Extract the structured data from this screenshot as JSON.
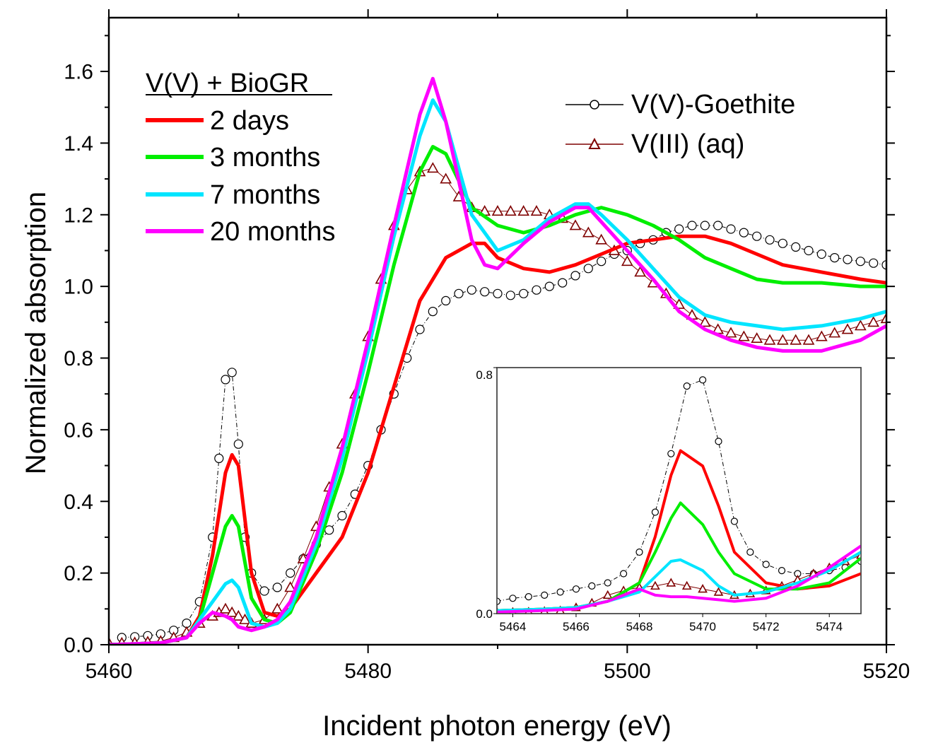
{
  "chart_data": [
    {
      "type": "line",
      "name": "main",
      "xlabel": "Incident photon energy (eV)",
      "ylabel": "Normalized absorption",
      "xlim": [
        5460,
        5520
      ],
      "ylim": [
        0.0,
        1.75
      ],
      "xticks": [
        5460,
        5480,
        5500,
        5520
      ],
      "xtick_labels": [
        "5460",
        "5480",
        "5500",
        "5520"
      ],
      "yticks": [
        0.0,
        0.2,
        0.4,
        0.6,
        0.8,
        1.0,
        1.2,
        1.4,
        1.6
      ],
      "ytick_labels": [
        "0.0",
        "0.2",
        "0.4",
        "0.6",
        "0.8",
        "1.0",
        "1.2",
        "1.4",
        "1.6"
      ],
      "legend_group_title": "V(V) + BioGR",
      "series": [
        {
          "name": "2 days",
          "color": "#ff0000",
          "style": "line",
          "x": [
            5460,
            5464,
            5466,
            5467,
            5468,
            5469,
            5469.5,
            5470,
            5471,
            5472,
            5473,
            5474,
            5476,
            5478,
            5480,
            5482,
            5484,
            5486,
            5488,
            5489,
            5490,
            5492,
            5494,
            5496,
            5498,
            5500,
            5502,
            5504,
            5506,
            5508,
            5510,
            5512,
            5515,
            5518,
            5520
          ],
          "y": [
            0.0,
            0.005,
            0.02,
            0.08,
            0.25,
            0.48,
            0.53,
            0.5,
            0.2,
            0.09,
            0.08,
            0.1,
            0.2,
            0.3,
            0.48,
            0.72,
            0.96,
            1.08,
            1.12,
            1.12,
            1.08,
            1.05,
            1.04,
            1.06,
            1.09,
            1.12,
            1.13,
            1.14,
            1.14,
            1.12,
            1.09,
            1.06,
            1.04,
            1.02,
            1.01
          ]
        },
        {
          "name": "3 months",
          "color": "#00ee00",
          "style": "line",
          "x": [
            5460,
            5464,
            5466,
            5467,
            5468,
            5469,
            5469.5,
            5470,
            5471,
            5472,
            5473,
            5474,
            5476,
            5478,
            5480,
            5482,
            5484,
            5485,
            5486,
            5488,
            5490,
            5492,
            5494,
            5496,
            5498,
            5500,
            5502,
            5504,
            5506,
            5508,
            5510,
            5512,
            5515,
            5518,
            5520
          ],
          "y": [
            0.0,
            0.005,
            0.02,
            0.07,
            0.2,
            0.33,
            0.36,
            0.33,
            0.13,
            0.07,
            0.06,
            0.09,
            0.26,
            0.48,
            0.76,
            1.06,
            1.32,
            1.39,
            1.37,
            1.22,
            1.17,
            1.15,
            1.17,
            1.2,
            1.22,
            1.2,
            1.17,
            1.13,
            1.08,
            1.05,
            1.02,
            1.01,
            1.01,
            1.0,
            1.0
          ]
        },
        {
          "name": "7 months",
          "color": "#00e5ff",
          "style": "line",
          "x": [
            5460,
            5464,
            5466,
            5467,
            5468,
            5469,
            5469.5,
            5470,
            5471,
            5472,
            5473,
            5474,
            5476,
            5478,
            5480,
            5482,
            5484,
            5485,
            5486,
            5488,
            5490,
            5492,
            5494,
            5496,
            5497,
            5498,
            5500,
            5502,
            5504,
            5506,
            5508,
            5510,
            5512,
            5515,
            5518,
            5520
          ],
          "y": [
            0.0,
            0.005,
            0.02,
            0.07,
            0.12,
            0.17,
            0.18,
            0.16,
            0.06,
            0.05,
            0.06,
            0.1,
            0.28,
            0.52,
            0.82,
            1.14,
            1.42,
            1.52,
            1.46,
            1.2,
            1.1,
            1.13,
            1.19,
            1.23,
            1.23,
            1.2,
            1.13,
            1.05,
            0.97,
            0.92,
            0.9,
            0.89,
            0.88,
            0.89,
            0.91,
            0.93
          ]
        },
        {
          "name": "20 months",
          "color": "#ff00ff",
          "style": "line",
          "x": [
            5460,
            5464,
            5466,
            5467,
            5468,
            5469,
            5469.5,
            5470,
            5471,
            5472,
            5473,
            5474,
            5476,
            5478,
            5480,
            5482,
            5484,
            5485,
            5486,
            5488,
            5489,
            5490,
            5492,
            5494,
            5496,
            5497,
            5498,
            5500,
            5502,
            5504,
            5506,
            5508,
            5510,
            5512,
            5515,
            5518,
            5520
          ],
          "y": [
            0.0,
            0.005,
            0.02,
            0.06,
            0.09,
            0.08,
            0.07,
            0.05,
            0.04,
            0.05,
            0.07,
            0.12,
            0.3,
            0.55,
            0.85,
            1.17,
            1.48,
            1.58,
            1.46,
            1.13,
            1.06,
            1.05,
            1.12,
            1.18,
            1.22,
            1.22,
            1.18,
            1.1,
            1.02,
            0.93,
            0.88,
            0.85,
            0.83,
            0.82,
            0.82,
            0.85,
            0.89
          ]
        },
        {
          "name": "V(V)-Goethite",
          "color": "#000000",
          "style": "circle",
          "x": [
            5461,
            5462,
            5463,
            5464,
            5465,
            5466,
            5467,
            5468,
            5468.5,
            5469,
            5469.5,
            5470,
            5470.5,
            5471,
            5472,
            5473,
            5474,
            5475,
            5476,
            5477,
            5478,
            5479,
            5480,
            5481,
            5482,
            5483,
            5484,
            5485,
            5486,
            5487,
            5488,
            5489,
            5490,
            5491,
            5492,
            5493,
            5494,
            5495,
            5496,
            5497,
            5498,
            5499,
            5500,
            5501,
            5502,
            5503,
            5504,
            5505,
            5506,
            5507,
            5508,
            5509,
            5510,
            5511,
            5512,
            5513,
            5514,
            5515,
            5516,
            5517,
            5518,
            5519,
            5520
          ],
          "y": [
            0.02,
            0.022,
            0.025,
            0.03,
            0.04,
            0.06,
            0.12,
            0.3,
            0.52,
            0.74,
            0.76,
            0.56,
            0.3,
            0.2,
            0.15,
            0.16,
            0.2,
            0.24,
            0.28,
            0.32,
            0.36,
            0.42,
            0.5,
            0.6,
            0.7,
            0.8,
            0.88,
            0.93,
            0.96,
            0.98,
            0.99,
            0.985,
            0.98,
            0.975,
            0.98,
            0.99,
            1.0,
            1.01,
            1.03,
            1.05,
            1.07,
            1.09,
            1.1,
            1.12,
            1.13,
            1.15,
            1.16,
            1.17,
            1.17,
            1.17,
            1.16,
            1.15,
            1.14,
            1.13,
            1.12,
            1.11,
            1.1,
            1.09,
            1.08,
            1.075,
            1.07,
            1.065,
            1.06
          ]
        },
        {
          "name": "V(III) (aq)",
          "color": "#7f0000",
          "style": "triangle",
          "x": [
            5460,
            5461,
            5462,
            5463,
            5464,
            5465,
            5466,
            5467,
            5468,
            5468.5,
            5469,
            5469.5,
            5470,
            5470.5,
            5471,
            5472,
            5473,
            5474,
            5475,
            5476,
            5477,
            5478,
            5479,
            5480,
            5481,
            5482,
            5483,
            5484,
            5485,
            5486,
            5487,
            5488,
            5489,
            5490,
            5491,
            5492,
            5493,
            5494,
            5495,
            5496,
            5497,
            5498,
            5499,
            5500,
            5501,
            5502,
            5503,
            5504,
            5505,
            5506,
            5507,
            5508,
            5509,
            5510,
            5511,
            5512,
            5513,
            5514,
            5515,
            5516,
            5517,
            5518,
            5519,
            5520
          ],
          "y": [
            0.005,
            0.005,
            0.006,
            0.008,
            0.01,
            0.02,
            0.035,
            0.06,
            0.08,
            0.09,
            0.1,
            0.09,
            0.08,
            0.07,
            0.06,
            0.07,
            0.1,
            0.16,
            0.24,
            0.33,
            0.44,
            0.56,
            0.7,
            0.86,
            1.02,
            1.17,
            1.27,
            1.32,
            1.33,
            1.3,
            1.25,
            1.22,
            1.21,
            1.21,
            1.21,
            1.21,
            1.21,
            1.2,
            1.19,
            1.17,
            1.15,
            1.13,
            1.1,
            1.07,
            1.04,
            1.01,
            0.98,
            0.95,
            0.92,
            0.9,
            0.88,
            0.87,
            0.86,
            0.855,
            0.85,
            0.85,
            0.85,
            0.85,
            0.86,
            0.87,
            0.88,
            0.89,
            0.9,
            0.91
          ]
        }
      ]
    },
    {
      "type": "line",
      "name": "inset",
      "xlim": [
        5463.5,
        5475
      ],
      "ylim": [
        0.0,
        0.8
      ],
      "xticks": [
        5464,
        5466,
        5468,
        5470,
        5472,
        5474
      ],
      "xtick_labels": [
        "5464",
        "5466",
        "5468",
        "5470",
        "5472",
        "5474"
      ],
      "yticks": [
        0.0,
        0.8
      ],
      "ytick_labels": [
        "0.0",
        "0.8"
      ],
      "series": [
        {
          "name": "2 days",
          "color": "#ff0000",
          "style": "line",
          "x": [
            5463.5,
            5465,
            5466,
            5467,
            5468,
            5468.5,
            5469,
            5469.3,
            5470,
            5470.5,
            5471,
            5472,
            5473,
            5474,
            5475
          ],
          "y": [
            0.01,
            0.015,
            0.02,
            0.04,
            0.1,
            0.25,
            0.45,
            0.53,
            0.48,
            0.35,
            0.2,
            0.1,
            0.08,
            0.09,
            0.13
          ]
        },
        {
          "name": "3 months",
          "color": "#00ee00",
          "style": "line",
          "x": [
            5463.5,
            5465,
            5466,
            5467,
            5468,
            5468.5,
            5469,
            5469.3,
            5470,
            5470.5,
            5471,
            5472,
            5473,
            5474,
            5475
          ],
          "y": [
            0.01,
            0.015,
            0.02,
            0.04,
            0.1,
            0.2,
            0.31,
            0.36,
            0.29,
            0.2,
            0.13,
            0.08,
            0.08,
            0.1,
            0.18
          ]
        },
        {
          "name": "7 months",
          "color": "#00e5ff",
          "style": "line",
          "x": [
            5463.5,
            5465,
            5466,
            5467,
            5468,
            5468.5,
            5469,
            5469.3,
            5470,
            5470.5,
            5471,
            5472,
            5473,
            5474,
            5475
          ],
          "y": [
            0.01,
            0.015,
            0.02,
            0.04,
            0.07,
            0.12,
            0.17,
            0.175,
            0.14,
            0.09,
            0.06,
            0.07,
            0.1,
            0.14,
            0.2
          ]
        },
        {
          "name": "20 months",
          "color": "#ff00ff",
          "style": "line",
          "x": [
            5463.5,
            5465,
            5466,
            5467,
            5468,
            5468.5,
            5469,
            5469.5,
            5470,
            5470.5,
            5471,
            5472,
            5473,
            5474,
            5475
          ],
          "y": [
            0.005,
            0.01,
            0.015,
            0.04,
            0.08,
            0.06,
            0.055,
            0.055,
            0.05,
            0.045,
            0.04,
            0.05,
            0.09,
            0.15,
            0.22
          ]
        },
        {
          "name": "V(V)-Goethite",
          "color": "#000000",
          "style": "circle",
          "x": [
            5463.5,
            5464,
            5464.5,
            5465,
            5465.5,
            5466,
            5466.5,
            5467,
            5467.5,
            5468,
            5468.5,
            5469,
            5469.5,
            5470,
            5470.5,
            5471,
            5471.5,
            5472,
            5472.5,
            5473,
            5473.5,
            5474,
            5474.5,
            5475
          ],
          "y": [
            0.04,
            0.05,
            0.055,
            0.06,
            0.07,
            0.08,
            0.09,
            0.1,
            0.13,
            0.2,
            0.33,
            0.52,
            0.74,
            0.76,
            0.56,
            0.3,
            0.2,
            0.16,
            0.14,
            0.13,
            0.13,
            0.14,
            0.15,
            0.17
          ]
        },
        {
          "name": "V(III) (aq)",
          "color": "#7f0000",
          "style": "triangle",
          "x": [
            5463.5,
            5464,
            5464.5,
            5465,
            5465.5,
            5466,
            5466.5,
            5467,
            5467.5,
            5468,
            5468.5,
            5469,
            5469.5,
            5470,
            5470.5,
            5471,
            5471.5,
            5472,
            5472.5,
            5473,
            5473.5,
            5474,
            5474.5,
            5475
          ],
          "y": [
            0.005,
            0.005,
            0.006,
            0.008,
            0.01,
            0.02,
            0.035,
            0.06,
            0.075,
            0.085,
            0.09,
            0.1,
            0.09,
            0.08,
            0.07,
            0.06,
            0.065,
            0.075,
            0.09,
            0.11,
            0.13,
            0.15,
            0.17,
            0.19
          ]
        }
      ]
    }
  ]
}
